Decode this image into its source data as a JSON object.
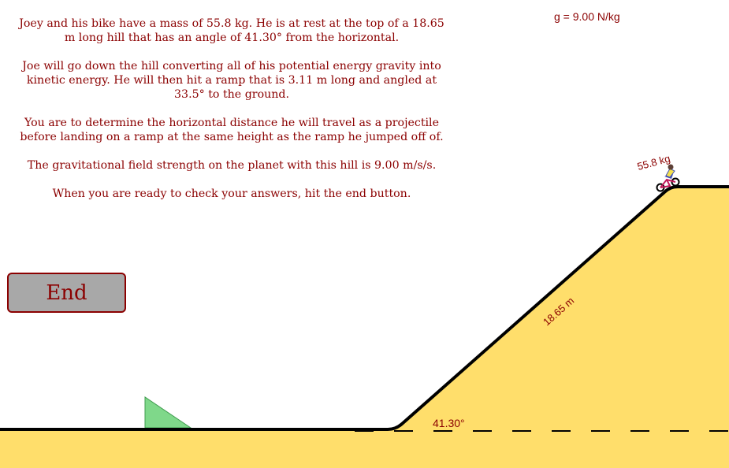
{
  "problem": {
    "paragraphs": [
      "Joey and his bike have a mass of 55.8 kg. He is at rest at the top of a 18.65 m long hill that has an angle of 41.30° from the horizontal.",
      "Joe will go down the hill converting all of his potential energy gravity into kinetic energy. He will then hit a ramp that is 3.11 m long and angled at 33.5° to the ground.",
      "You are to determine the horizontal distance he will travel as a projectile before landing on a ramp at the same height as the ramp he jumped off of.",
      "The gravitational field strength on the planet with this hill is 9.00 m/s/s.",
      "When you are ready to check your answers, hit the end button."
    ]
  },
  "gravity_readout": "g = 9.00 N/kg",
  "end_button_label": "End",
  "scene": {
    "hill_length_label": "18.65 m",
    "angle_label": "41.30°",
    "mass_label": "55.8 kg"
  },
  "colors": {
    "ground": "#ffde6b",
    "ramp": "#7fd88a",
    "text": "#8b0000",
    "button_bg": "#a8a8a8",
    "line": "#000000"
  }
}
